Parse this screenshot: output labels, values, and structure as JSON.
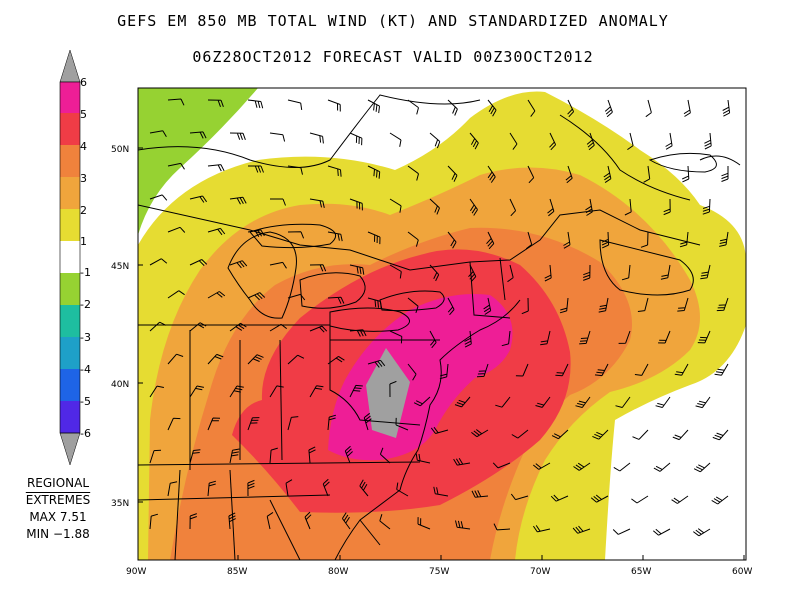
{
  "title": "GEFS EM 850 MB TOTAL WIND (KT) AND STANDARDIZED ANOMALY",
  "subtitle": "06Z28OCT2012 FORECAST   VALID 00Z30OCT2012",
  "legend": {
    "labels": [
      "6",
      "5",
      "4",
      "3",
      "2",
      "1",
      "-1",
      "-2",
      "-3",
      "-4",
      "-5",
      "-6"
    ],
    "colors": {
      "over6": "#a0a0a0",
      "5to6": "#ee1e96",
      "4to5": "#f03c46",
      "3to4": "#f0823c",
      "2to3": "#f0a53c",
      "1to2": "#e6dc32",
      "neutral": "#ffffff",
      "m1tom2": "#96d232",
      "m2tom3": "#1ebea0",
      "m3tom4": "#1ea0c8",
      "m4tom5": "#1e64e6",
      "m5tom6": "#5028e6",
      "below_m6": "#8c1ee6",
      "under": "#a0a0a0"
    }
  },
  "extremes": {
    "heading1": "REGIONAL",
    "heading2": "EXTREMES",
    "max": "MAX 7.51",
    "min": "MIN −1.88"
  },
  "axes": {
    "lon_labels": [
      "90W",
      "85W",
      "80W",
      "75W",
      "70W",
      "65W",
      "60W"
    ],
    "lat_labels": [
      "50N",
      "45N",
      "40N",
      "35N"
    ]
  }
}
